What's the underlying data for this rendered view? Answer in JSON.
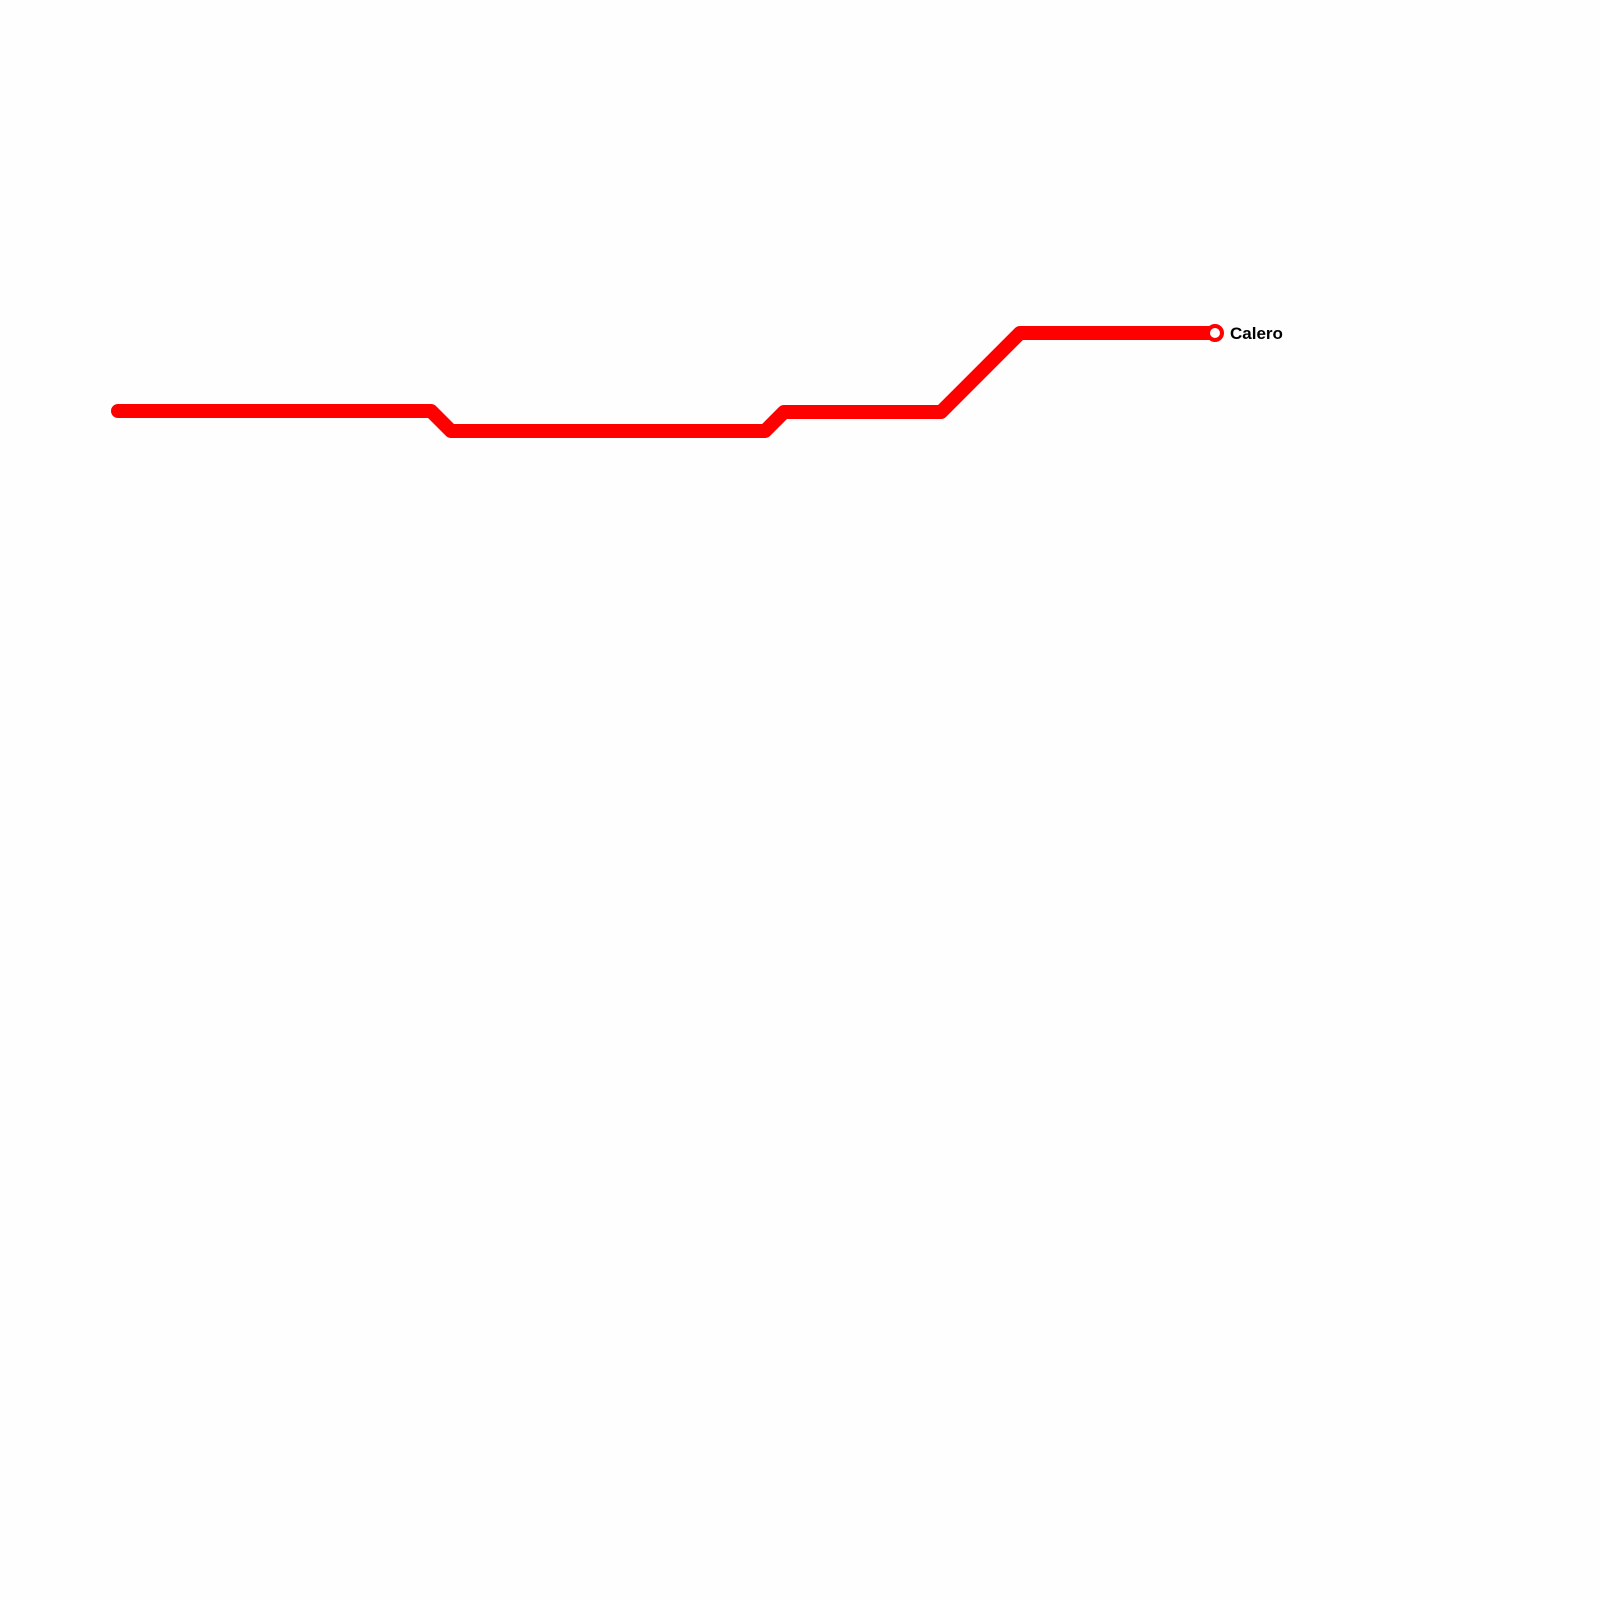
{
  "lines": [
    {
      "color": "#ff0000",
      "stations": [
        {
          "name": "Calero",
          "terminus": true
        }
      ]
    }
  ]
}
